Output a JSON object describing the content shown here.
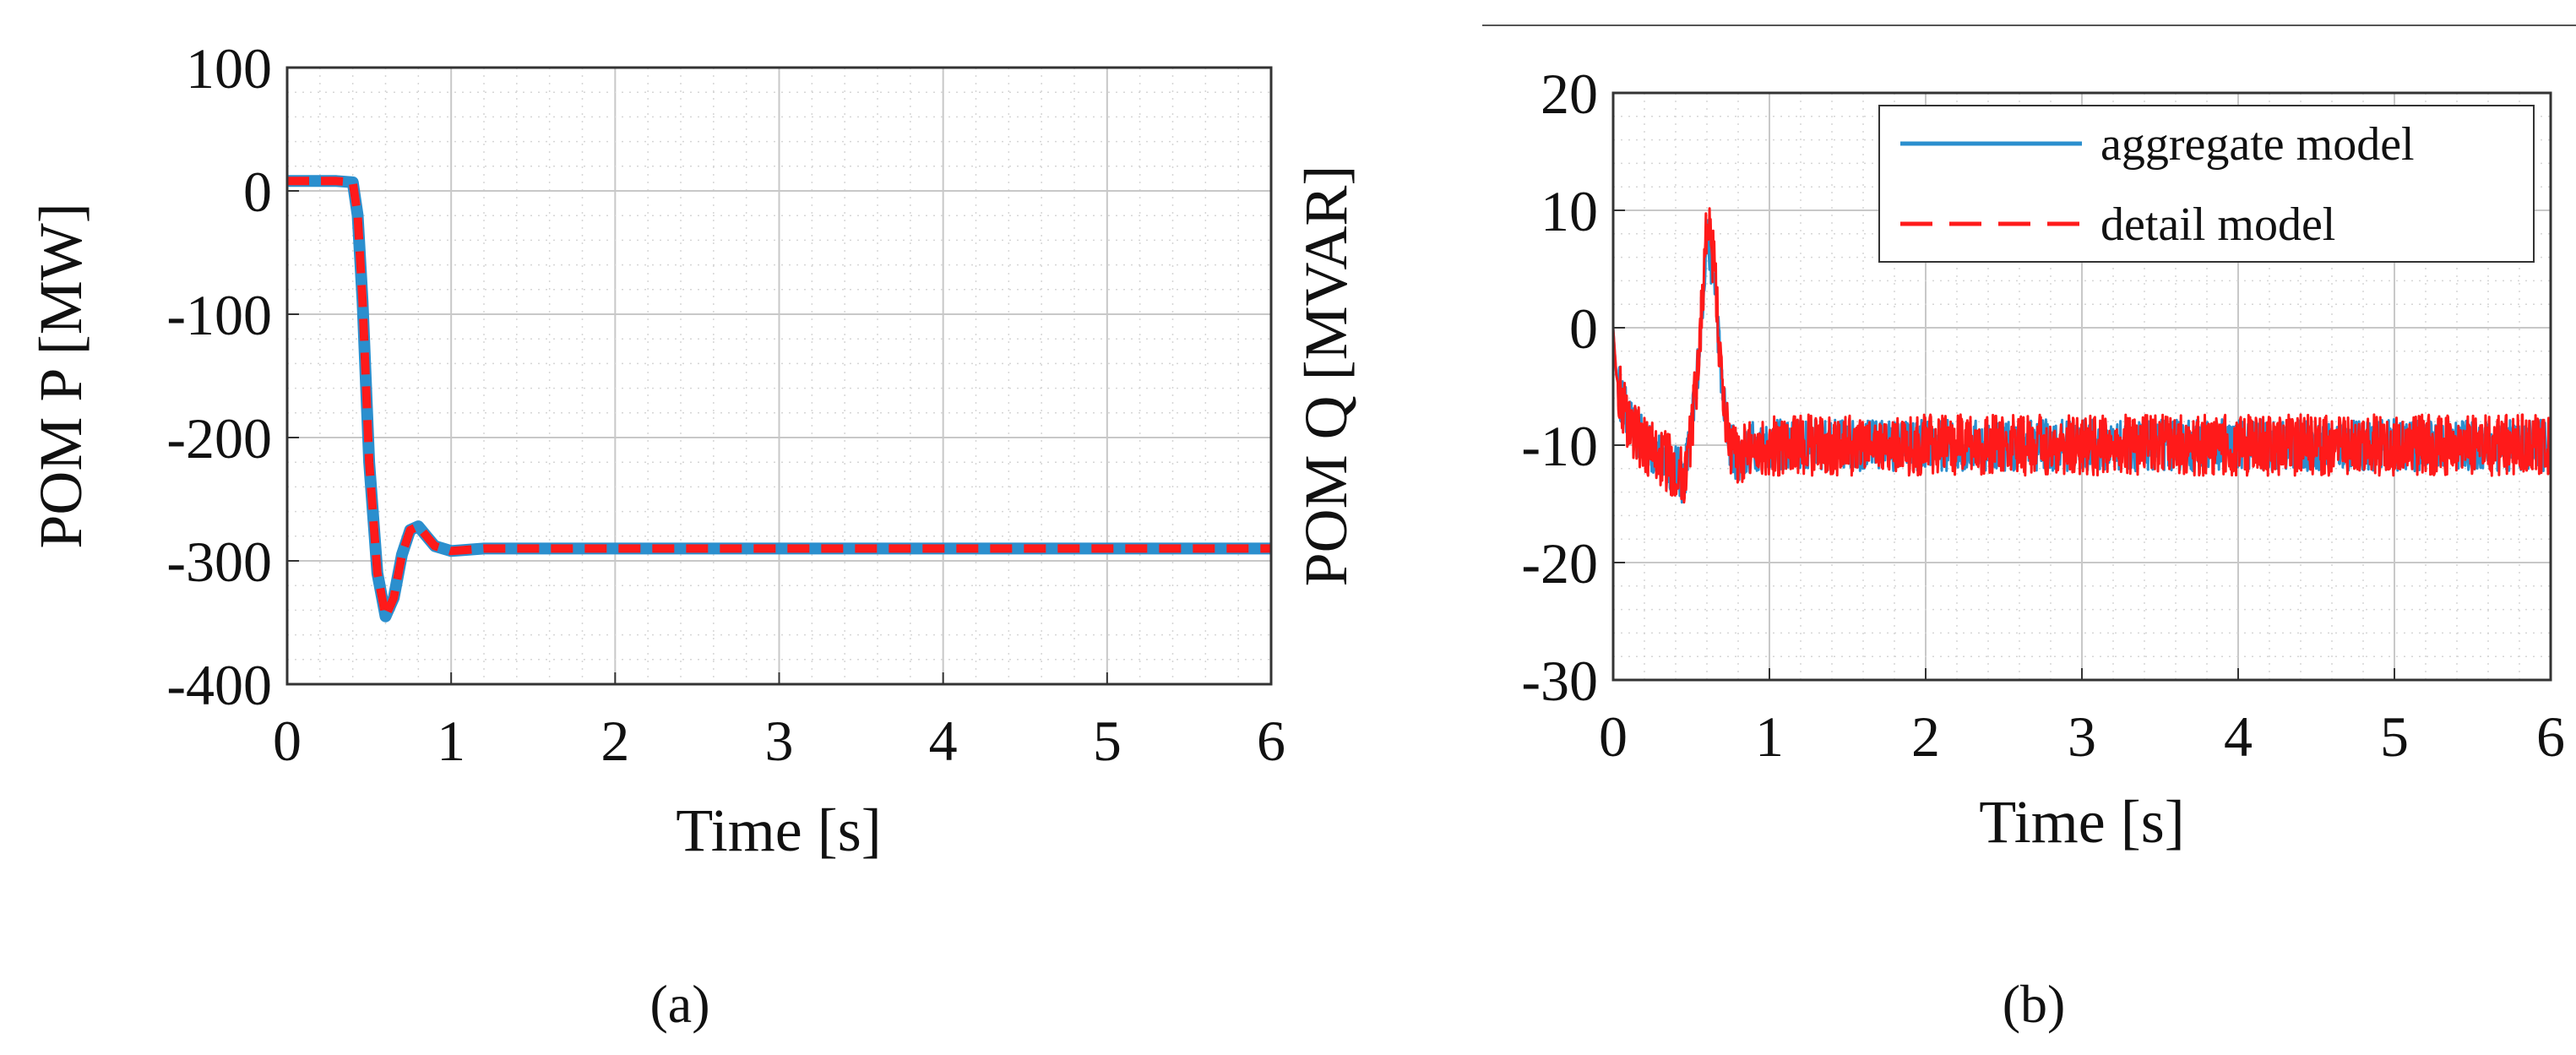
{
  "chart_data": [
    {
      "panel_label": "(a)",
      "type": "line",
      "title": "",
      "xlabel": "Time [s]",
      "ylabel": "POM P [MW]",
      "xlim": [
        0,
        6
      ],
      "ylim": [
        -400,
        100
      ],
      "xticks": [
        "0",
        "1",
        "2",
        "3",
        "4",
        "5",
        "6"
      ],
      "yticks": [
        "100",
        "0",
        "-100",
        "-200",
        "-300",
        "-400"
      ],
      "grid": true,
      "legend": "none",
      "series": [
        {
          "color": "#2b8fce",
          "style": "solid",
          "x": [
            0,
            0.3,
            0.4,
            0.43,
            0.46,
            0.5,
            0.55,
            0.6,
            0.65,
            0.7,
            0.75,
            0.8,
            0.85,
            0.9,
            1.0,
            1.1,
            1.2,
            1.5,
            2,
            3,
            4,
            5,
            6
          ],
          "y": [
            8,
            8,
            7,
            -20,
            -90,
            -220,
            -310,
            -345,
            -330,
            -295,
            -275,
            -272,
            -280,
            -288,
            -292,
            -291,
            -290,
            -290,
            -290,
            -290,
            -290,
            -290,
            -290
          ]
        },
        {
          "color": "#ff1a1a",
          "style": "dashed",
          "x": [
            0,
            0.3,
            0.4,
            0.43,
            0.46,
            0.5,
            0.55,
            0.6,
            0.65,
            0.7,
            0.75,
            0.8,
            0.85,
            0.9,
            1.0,
            1.1,
            1.2,
            1.5,
            2,
            3,
            4,
            5,
            6
          ],
          "y": [
            8,
            8,
            7,
            -20,
            -90,
            -220,
            -310,
            -345,
            -330,
            -295,
            -275,
            -272,
            -280,
            -288,
            -292,
            -291,
            -290,
            -290,
            -290,
            -290,
            -290,
            -290,
            -290
          ]
        }
      ]
    },
    {
      "panel_label": "(b)",
      "type": "line",
      "title": "",
      "xlabel": "Time [s]",
      "ylabel": "POM Q [MVAR]",
      "xlim": [
        0,
        6
      ],
      "ylim": [
        -30,
        20
      ],
      "xticks": [
        "0",
        "1",
        "2",
        "3",
        "4",
        "5",
        "6"
      ],
      "yticks": [
        "20",
        "10",
        "0",
        "-10",
        "-20",
        "-30"
      ],
      "grid": true,
      "legend": "top-right",
      "series": [
        {
          "name": "aggregate model",
          "color": "#2b8fce",
          "style": "solid",
          "noise": 2.2,
          "x": [
            0,
            0.02,
            0.05,
            0.1,
            0.2,
            0.3,
            0.4,
            0.45,
            0.5,
            0.55,
            0.6,
            0.65,
            0.7,
            0.75,
            0.8,
            0.9,
            1.0,
            1.5,
            2,
            3,
            4,
            5,
            6
          ],
          "y": [
            0,
            -4,
            -6,
            -8,
            -10,
            -11,
            -12,
            -13,
            -9,
            -2,
            8,
            4,
            -6,
            -10,
            -11,
            -10,
            -10,
            -10,
            -10,
            -10,
            -10,
            -10,
            -10
          ]
        },
        {
          "name": "detail model",
          "color": "#ff1a1a",
          "style": "solid",
          "noise": 2.6,
          "x": [
            0,
            0.02,
            0.05,
            0.1,
            0.2,
            0.3,
            0.4,
            0.45,
            0.5,
            0.55,
            0.6,
            0.65,
            0.7,
            0.75,
            0.8,
            0.9,
            1.0,
            1.5,
            2,
            3,
            4,
            5,
            6
          ],
          "y": [
            0,
            -4,
            -6,
            -8,
            -10,
            -11,
            -12,
            -13,
            -9,
            -2,
            9,
            5,
            -6,
            -10,
            -11,
            -10,
            -10,
            -10,
            -10,
            -10,
            -10,
            -10,
            -10
          ]
        }
      ]
    }
  ]
}
